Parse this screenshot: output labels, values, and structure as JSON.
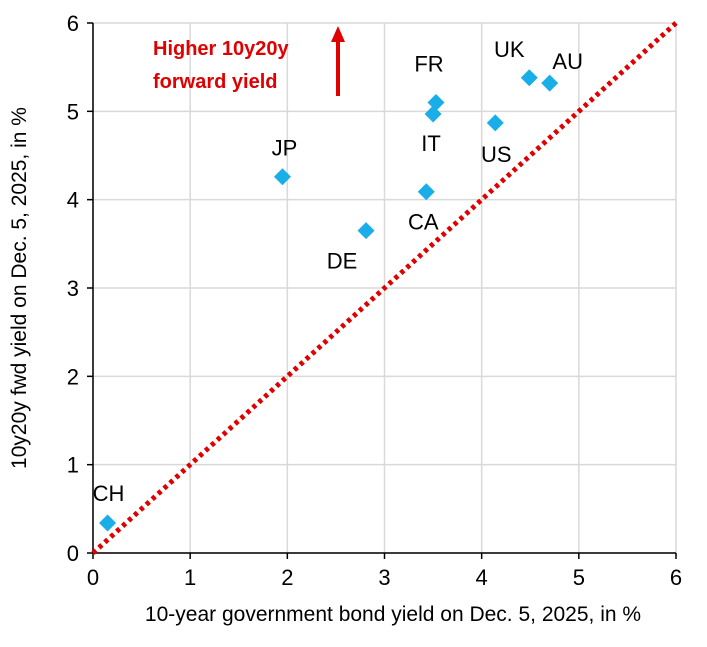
{
  "chart_data": {
    "type": "scatter",
    "title": "",
    "xlabel": "10-year government bond yield on Dec. 5, 2025, in %",
    "ylabel": "10y20y fwd yield on Dec. 5, 2025, in %",
    "xlim": [
      0,
      6
    ],
    "ylim": [
      0,
      6
    ],
    "xticks": [
      "0",
      "1",
      "2",
      "3",
      "4",
      "5",
      "6"
    ],
    "yticks": [
      "0",
      "1",
      "2",
      "3",
      "4",
      "5",
      "6"
    ],
    "grid": true,
    "marker_color": "#1AAEE8",
    "reference_line": {
      "name": "45-degree line",
      "x": [
        0,
        6
      ],
      "y": [
        0,
        6
      ],
      "style": "dotted",
      "color": "#E00000"
    },
    "points": [
      {
        "label": "CH",
        "x": 0.15,
        "y": 0.34
      },
      {
        "label": "JP",
        "x": 1.95,
        "y": 4.26
      },
      {
        "label": "DE",
        "x": 2.81,
        "y": 3.65
      },
      {
        "label": "CA",
        "x": 3.43,
        "y": 4.09
      },
      {
        "label": "IT",
        "x": 3.5,
        "y": 4.97
      },
      {
        "label": "FR",
        "x": 3.53,
        "y": 5.1
      },
      {
        "label": "US",
        "x": 4.14,
        "y": 4.87
      },
      {
        "label": "UK",
        "x": 4.49,
        "y": 5.38
      },
      {
        "label": "AU",
        "x": 4.7,
        "y": 5.32
      }
    ],
    "annotation": {
      "lines": [
        "Higher 10y20y",
        "forward yield"
      ],
      "color": "#E00000",
      "arrow": "up"
    }
  }
}
